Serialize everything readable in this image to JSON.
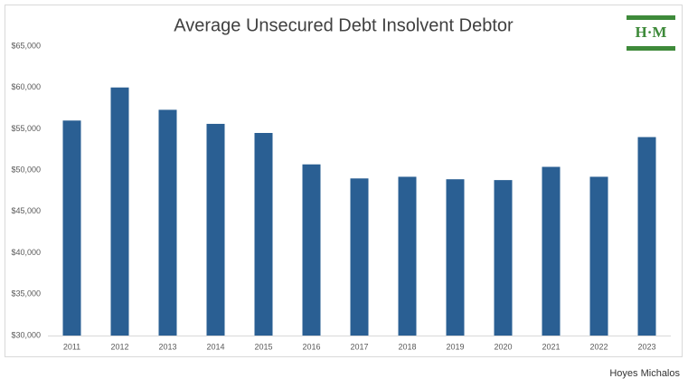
{
  "chart_data": {
    "type": "bar",
    "title": "Average Unsecured Debt Insolvent Debtor",
    "categories": [
      "2011",
      "2012",
      "2013",
      "2014",
      "2015",
      "2016",
      "2017",
      "2018",
      "2019",
      "2020",
      "2021",
      "2022",
      "2023"
    ],
    "values": [
      56000,
      60000,
      57300,
      55600,
      54500,
      50700,
      49000,
      49200,
      48900,
      48800,
      50400,
      49200,
      54000
    ],
    "color": "#2a5f93",
    "ylim": [
      30000,
      65000
    ],
    "yticks": [
      {
        "value": 30000,
        "label": "$30,000"
      },
      {
        "value": 35000,
        "label": "$35,000"
      },
      {
        "value": 40000,
        "label": "$40,000"
      },
      {
        "value": 45000,
        "label": "$45,000"
      },
      {
        "value": 50000,
        "label": "$50,000"
      },
      {
        "value": 55000,
        "label": "$55,000"
      },
      {
        "value": 60000,
        "label": "$60,000"
      },
      {
        "value": 65000,
        "label": "$65,000"
      }
    ],
    "grid": false
  },
  "logo": "H·M",
  "caption": "Hoyes Michalos"
}
